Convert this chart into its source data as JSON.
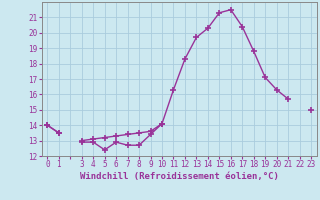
{
  "xlabel": "Windchill (Refroidissement éolien,°C)",
  "x_values": [
    0,
    1,
    2,
    3,
    4,
    5,
    6,
    7,
    8,
    9,
    10,
    11,
    12,
    13,
    14,
    15,
    16,
    17,
    18,
    19,
    20,
    21,
    22,
    23
  ],
  "line1_y": [
    14.0,
    13.5,
    null,
    12.9,
    12.9,
    12.4,
    12.9,
    12.7,
    12.7,
    13.4,
    14.1,
    null,
    null,
    null,
    null,
    null,
    null,
    null,
    null,
    null,
    null,
    null,
    null,
    null
  ],
  "line2_y": [
    14.0,
    13.5,
    null,
    13.0,
    13.1,
    13.2,
    13.3,
    13.4,
    13.5,
    13.6,
    14.1,
    16.3,
    18.3,
    19.7,
    20.3,
    21.3,
    21.5,
    20.4,
    18.8,
    17.1,
    16.3,
    15.7,
    null,
    15.0
  ],
  "ylim": [
    12,
    22
  ],
  "xlim": [
    -0.5,
    23.5
  ],
  "yticks": [
    12,
    13,
    14,
    15,
    16,
    17,
    18,
    19,
    20,
    21
  ],
  "xtick_labels": [
    "0",
    "1",
    "",
    "3",
    "4",
    "5",
    "6",
    "7",
    "8",
    "9",
    "10",
    "11",
    "12",
    "13",
    "14",
    "15",
    "16",
    "17",
    "18",
    "19",
    "20",
    "21",
    "22",
    "23"
  ],
  "line_color": "#993399",
  "bg_color": "#cce8f0",
  "grid_color": "#aaccdd",
  "marker": "+",
  "linewidth": 1.0,
  "markersize": 5,
  "tick_fontsize": 5.5,
  "xlabel_fontsize": 6.5
}
